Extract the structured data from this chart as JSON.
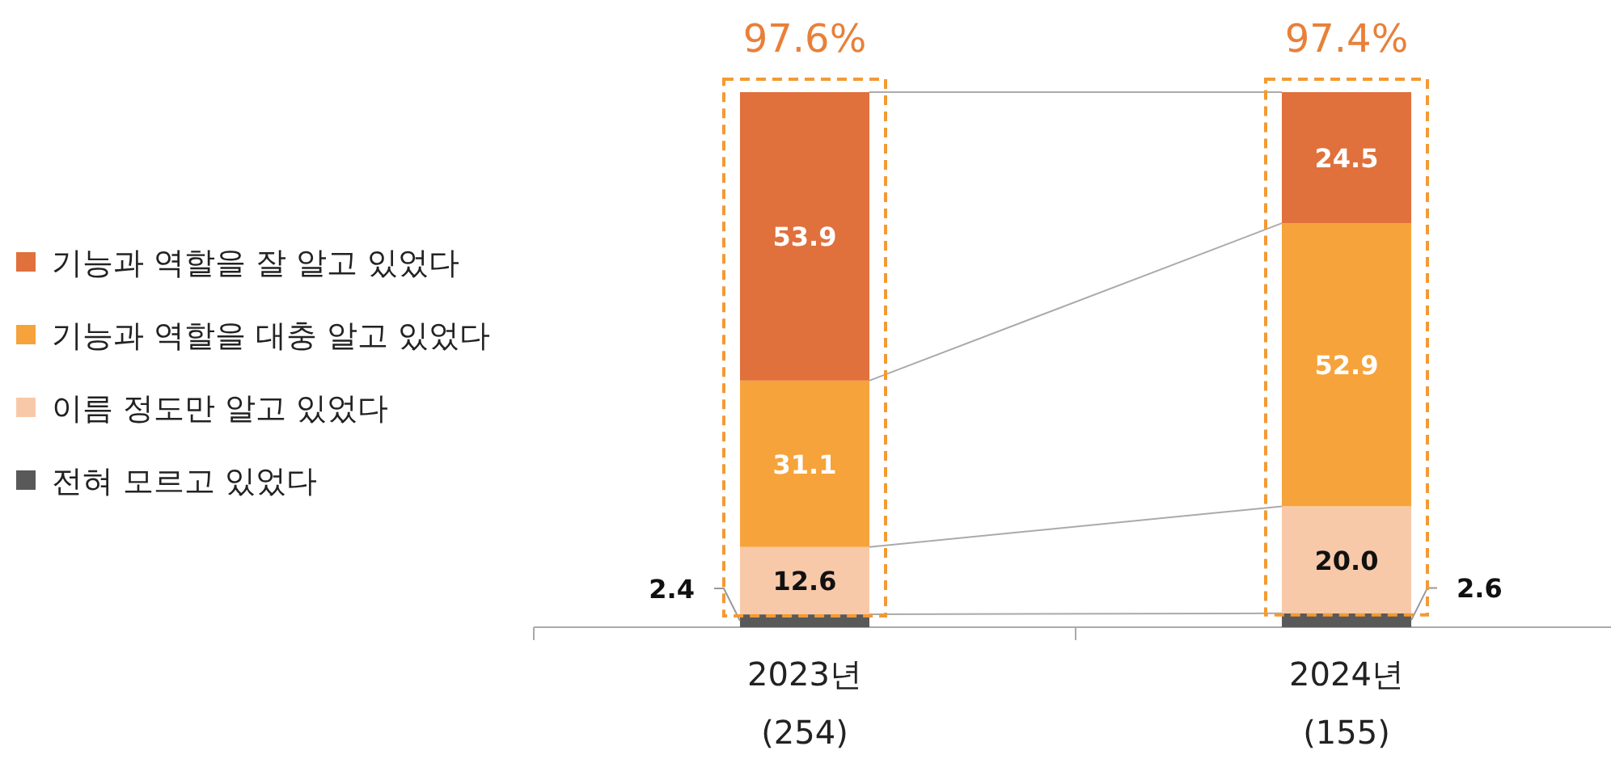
{
  "chart_data": {
    "type": "bar",
    "stacked": true,
    "categories": [
      "2023년\n(254)",
      "2024년\n(155)"
    ],
    "series": [
      {
        "name": "전혀 모르고 있었다",
        "color": "#595959",
        "values": [
          2.4,
          2.6
        ],
        "value_labels": [
          "2.4",
          "2.6"
        ]
      },
      {
        "name": "이름 정도만 알고 있었다",
        "color": "#f8c9a9",
        "values": [
          12.6,
          20.0
        ],
        "value_labels": [
          "12.6",
          "20.0"
        ]
      },
      {
        "name": "기능과 역할을 대충 알고 있었다",
        "color": "#f6a33b",
        "values": [
          31.1,
          52.9
        ],
        "value_labels": [
          "31.1",
          "52.9"
        ]
      },
      {
        "name": "기능과 역할을 잘 알고 있었다",
        "color": "#e0703c",
        "values": [
          53.9,
          24.5
        ],
        "value_labels": [
          "53.9",
          "24.5"
        ]
      }
    ],
    "ylim": [
      0,
      100
    ],
    "tick_labels": "x",
    "legend": "left",
    "annotations": [
      {
        "text": "97.6%",
        "x": "2023년\n(254)",
        "y": 100
      },
      {
        "text": "97.4%",
        "x": "2024년\n(155)",
        "y": 100
      }
    ]
  }
}
